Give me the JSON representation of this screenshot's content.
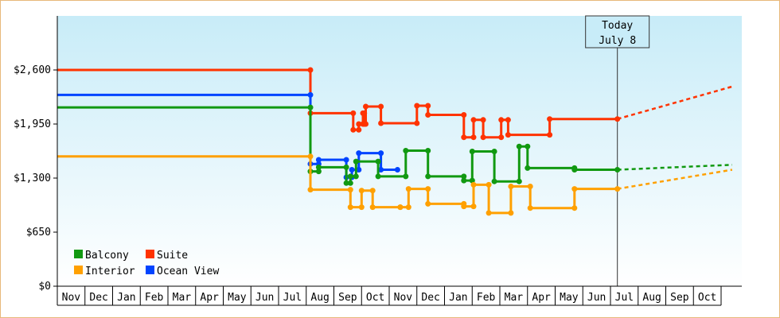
{
  "chart_data": {
    "type": "line",
    "title": "",
    "xlabel": "",
    "ylabel": "",
    "ylim": [
      0,
      3250
    ],
    "y_ticks": [
      {
        "value": 0,
        "label": "$0"
      },
      {
        "value": 650,
        "label": "$650"
      },
      {
        "value": 1300,
        "label": "$1,300"
      },
      {
        "value": 1950,
        "label": "$1,950"
      },
      {
        "value": 2600,
        "label": "$2,600"
      }
    ],
    "months": [
      "Nov",
      "Dec",
      "Jan",
      "Feb",
      "Mar",
      "Apr",
      "May",
      "Jun",
      "Jul",
      "Aug",
      "Sep",
      "Oct",
      "Nov",
      "Dec",
      "Jan",
      "Feb",
      "Mar",
      "Apr",
      "May",
      "Jun",
      "Jul",
      "Aug",
      "Sep",
      "Oct"
    ],
    "legend_position": "bottom-left",
    "today_label": [
      "Today",
      "July 8"
    ],
    "today_x": 20.25,
    "grid": false,
    "colors": {
      "Balcony": "#119911",
      "Suite": "#ff3300",
      "Interior": "#ffa000",
      "Ocean View": "#0044ff"
    },
    "series": [
      {
        "name": "Suite",
        "color": "#ff3300",
        "points": [
          [
            0,
            2600
          ],
          [
            9.15,
            2600
          ],
          [
            9.15,
            2080
          ],
          [
            10.7,
            2080
          ],
          [
            10.7,
            1880
          ],
          [
            10.9,
            1880
          ],
          [
            10.9,
            1950
          ],
          [
            11.05,
            1950
          ],
          [
            11.05,
            2080
          ],
          [
            11.1,
            2080
          ],
          [
            11.1,
            1950
          ],
          [
            11.15,
            1950
          ],
          [
            11.15,
            2160
          ],
          [
            11.7,
            2160
          ],
          [
            11.7,
            1960
          ],
          [
            13.0,
            1960
          ],
          [
            13.0,
            2170
          ],
          [
            13.4,
            2170
          ],
          [
            13.4,
            2060
          ],
          [
            14.7,
            2060
          ],
          [
            14.7,
            1790
          ],
          [
            15.05,
            1790
          ],
          [
            15.05,
            2000
          ],
          [
            15.4,
            2000
          ],
          [
            15.4,
            1790
          ],
          [
            16.05,
            1790
          ],
          [
            16.05,
            2000
          ],
          [
            16.3,
            2000
          ],
          [
            16.3,
            1820
          ],
          [
            17.8,
            1820
          ],
          [
            17.8,
            2010
          ],
          [
            20.25,
            2010
          ]
        ],
        "projection": [
          [
            20.25,
            2010
          ],
          [
            24.4,
            2400
          ]
        ]
      },
      {
        "name": "Ocean View",
        "color": "#0044ff",
        "points": [
          [
            0,
            2300
          ],
          [
            9.15,
            2300
          ],
          [
            9.15,
            1470
          ],
          [
            9.45,
            1470
          ],
          [
            9.45,
            1520
          ],
          [
            10.45,
            1520
          ],
          [
            10.45,
            1310
          ],
          [
            10.65,
            1310
          ],
          [
            10.65,
            1400
          ],
          [
            10.9,
            1400
          ],
          [
            10.9,
            1600
          ],
          [
            11.7,
            1600
          ],
          [
            11.7,
            1400
          ],
          [
            12.3,
            1400
          ]
        ]
      },
      {
        "name": "Balcony",
        "color": "#119911",
        "points": [
          [
            0,
            2150
          ],
          [
            9.15,
            2150
          ],
          [
            9.15,
            1380
          ],
          [
            9.45,
            1380
          ],
          [
            9.45,
            1430
          ],
          [
            10.45,
            1430
          ],
          [
            10.45,
            1240
          ],
          [
            10.6,
            1240
          ],
          [
            10.6,
            1320
          ],
          [
            10.8,
            1320
          ],
          [
            10.8,
            1500
          ],
          [
            11.6,
            1500
          ],
          [
            11.6,
            1320
          ],
          [
            12.6,
            1320
          ],
          [
            12.6,
            1630
          ],
          [
            13.4,
            1630
          ],
          [
            13.4,
            1320
          ],
          [
            14.7,
            1320
          ],
          [
            14.7,
            1270
          ],
          [
            15.0,
            1270
          ],
          [
            15.0,
            1620
          ],
          [
            15.8,
            1620
          ],
          [
            15.8,
            1260
          ],
          [
            16.7,
            1260
          ],
          [
            16.7,
            1680
          ],
          [
            17.0,
            1680
          ],
          [
            17.0,
            1420
          ],
          [
            18.7,
            1420
          ],
          [
            18.7,
            1400
          ],
          [
            20.25,
            1400
          ]
        ],
        "projection": [
          [
            20.25,
            1400
          ],
          [
            24.4,
            1460
          ]
        ]
      },
      {
        "name": "Interior",
        "color": "#ffa000",
        "points": [
          [
            0,
            1560
          ],
          [
            9.15,
            1560
          ],
          [
            9.15,
            1160
          ],
          [
            10.6,
            1160
          ],
          [
            10.6,
            950
          ],
          [
            11.0,
            950
          ],
          [
            11.0,
            1150
          ],
          [
            11.4,
            1150
          ],
          [
            11.4,
            950
          ],
          [
            12.4,
            950
          ],
          [
            12.4,
            950
          ],
          [
            12.7,
            950
          ],
          [
            12.7,
            1170
          ],
          [
            13.4,
            1170
          ],
          [
            13.4,
            990
          ],
          [
            14.7,
            990
          ],
          [
            14.7,
            960
          ],
          [
            15.05,
            960
          ],
          [
            15.05,
            1220
          ],
          [
            15.6,
            1220
          ],
          [
            15.6,
            880
          ],
          [
            16.4,
            880
          ],
          [
            16.4,
            1200
          ],
          [
            17.1,
            1200
          ],
          [
            17.1,
            940
          ],
          [
            18.7,
            940
          ],
          [
            18.7,
            1170
          ],
          [
            20.25,
            1170
          ]
        ],
        "projection": [
          [
            20.25,
            1170
          ],
          [
            24.4,
            1400
          ]
        ]
      }
    ]
  }
}
